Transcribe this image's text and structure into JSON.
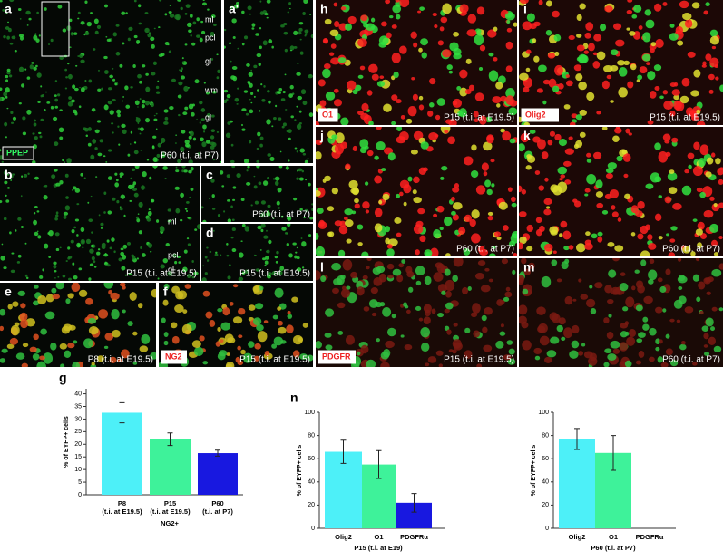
{
  "panels": [
    {
      "letter": "a",
      "label": "PPEP",
      "caption": "P60 (t.i. at P7)",
      "layers": [
        "ml",
        "pcl",
        "gl",
        "wm",
        "gl"
      ]
    },
    {
      "letter": "a'"
    },
    {
      "letter": "b",
      "caption": "P15 (t.i. at E19.5)",
      "layers": [
        "ml",
        "pcl",
        "gl"
      ]
    },
    {
      "letter": "c",
      "caption": "P60 (t.i. at P7)"
    },
    {
      "letter": "d",
      "caption": "P15 (t.i. at E19.5)"
    },
    {
      "letter": "e",
      "caption": "P8 (t.i. at E19.5)"
    },
    {
      "letter": "f",
      "label": "NG2",
      "caption": "P15 (t.i. at E19.5)"
    },
    {
      "letter": "h",
      "label": "O1",
      "caption": "P15 (t.i. at E19.5)"
    },
    {
      "letter": "i",
      "label": "Olig2",
      "caption": "P15 (t.i. at E19.5)"
    },
    {
      "letter": "j",
      "caption": "P60 (t.i. at P7)"
    },
    {
      "letter": "k",
      "caption": "P60 (t.i. at P7)"
    },
    {
      "letter": "l",
      "label": "PDGFR",
      "caption": "P15 (t.i. at E19.5)"
    },
    {
      "letter": "m",
      "caption": "P60 (t.i. at P7)"
    }
  ],
  "chart_data": [
    {
      "type": "bar",
      "letter": "g",
      "ylabel": "% of EYFP+ cells",
      "xlabel": "NG2+",
      "categories": [
        "P8",
        "P15",
        "P60"
      ],
      "sublabels": [
        "(t.i. at E19.5)",
        "(t.i. at E19.5)",
        "(t.i. at P7)"
      ],
      "values": [
        32.5,
        22,
        16.5
      ],
      "errors": [
        4,
        2.5,
        1.2
      ],
      "colors": [
        "#4df0f8",
        "#3ef29a",
        "#1818e0"
      ],
      "ylim": [
        0,
        42
      ],
      "yticks": [
        0,
        5,
        10,
        15,
        20,
        25,
        30,
        35,
        40
      ]
    },
    {
      "type": "bar",
      "letter": "n",
      "ylabel": "% of EYFP+ cells",
      "xlabel": "P15 (t.i. at E19)",
      "categories": [
        "Olig2",
        "O1",
        "PDGFRα"
      ],
      "values": [
        66,
        55,
        22
      ],
      "errors": [
        10,
        12,
        8
      ],
      "colors": [
        "#4df0f8",
        "#3ef29a",
        "#1818e0"
      ],
      "ylim": [
        0,
        100
      ],
      "yticks": [
        0,
        20,
        40,
        60,
        80,
        100
      ]
    },
    {
      "type": "bar",
      "ylabel": "% of EYFP+ cells",
      "xlabel": "P60 (t.i. at P7)",
      "categories": [
        "Olig2",
        "O1",
        "PDGFRα"
      ],
      "values": [
        77,
        65,
        0
      ],
      "errors": [
        9,
        15,
        null
      ],
      "colors": [
        "#4df0f8",
        "#3ef29a",
        "#1818e0"
      ],
      "ylim": [
        0,
        100
      ],
      "yticks": [
        0,
        20,
        40,
        60,
        80,
        100
      ]
    }
  ]
}
